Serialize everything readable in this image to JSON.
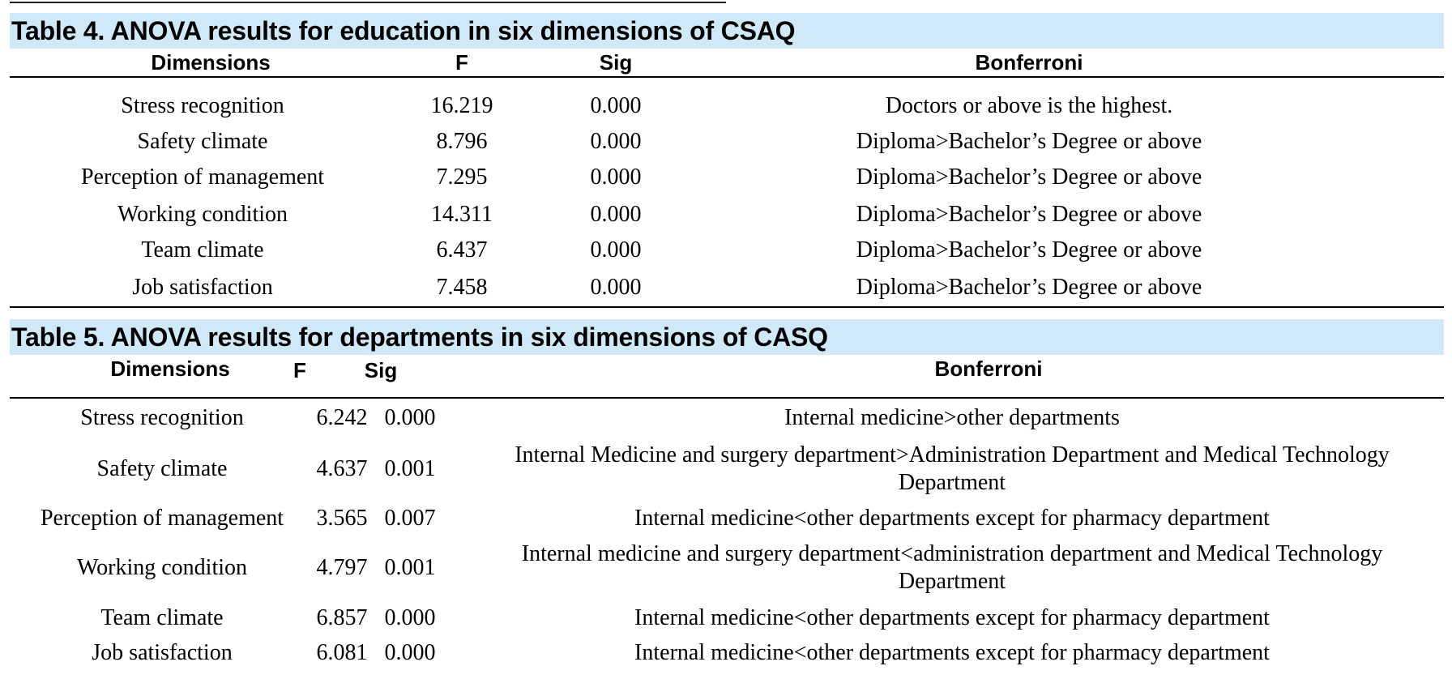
{
  "table4": {
    "title": "Table 4. ANOVA results for education in six dimensions of CSAQ",
    "headers": [
      "Dimensions",
      "F",
      "Sig",
      "Bonferroni"
    ],
    "rows": [
      {
        "dimension": "Stress recognition",
        "f": "16.219",
        "sig": "0.000",
        "bonferroni": "Doctors or above is the highest."
      },
      {
        "dimension": "Safety climate",
        "f": "8.796",
        "sig": "0.000",
        "bonferroni": "Diploma>Bachelor’s Degree or above"
      },
      {
        "dimension": "Perception of management",
        "f": "7.295",
        "sig": "0.000",
        "bonferroni": "Diploma>Bachelor’s Degree or above"
      },
      {
        "dimension": "Working condition",
        "f": "14.311",
        "sig": "0.000",
        "bonferroni": "Diploma>Bachelor’s Degree or above"
      },
      {
        "dimension": "Team climate",
        "f": "6.437",
        "sig": "0.000",
        "bonferroni": "Diploma>Bachelor’s Degree or above"
      },
      {
        "dimension": "Job satisfaction",
        "f": "7.458",
        "sig": "0.000",
        "bonferroni": "Diploma>Bachelor’s Degree or above"
      }
    ]
  },
  "table5": {
    "title": "Table 5. ANOVA results for departments in six dimensions of CASQ",
    "headers": [
      "Dimensions",
      "F",
      "Sig",
      "Bonferroni"
    ],
    "rows": [
      {
        "dimension": "Stress recognition",
        "f": "6.242",
        "sig": "0.000",
        "bonferroni": "Internal medicine>other departments"
      },
      {
        "dimension": "Safety climate",
        "f": "4.637",
        "sig": "0.001",
        "bonferroni": "Internal Medicine and surgery department>Administration Department and Medical Technology Department"
      },
      {
        "dimension": "Perception of management",
        "f": "3.565",
        "sig": "0.007",
        "bonferroni": "Internal medicine<other departments except for pharmacy department"
      },
      {
        "dimension": "Working condition",
        "f": "4.797",
        "sig": "0.001",
        "bonferroni": "Internal medicine and surgery department<administration department and Medical Technology Department"
      },
      {
        "dimension": "Team climate",
        "f": "6.857",
        "sig": "0.000",
        "bonferroni": "Internal medicine<other departments except for pharmacy department"
      },
      {
        "dimension": "Job satisfaction",
        "f": "6.081",
        "sig": "0.000",
        "bonferroni": "Internal medicine<other departments except for pharmacy department"
      }
    ]
  }
}
